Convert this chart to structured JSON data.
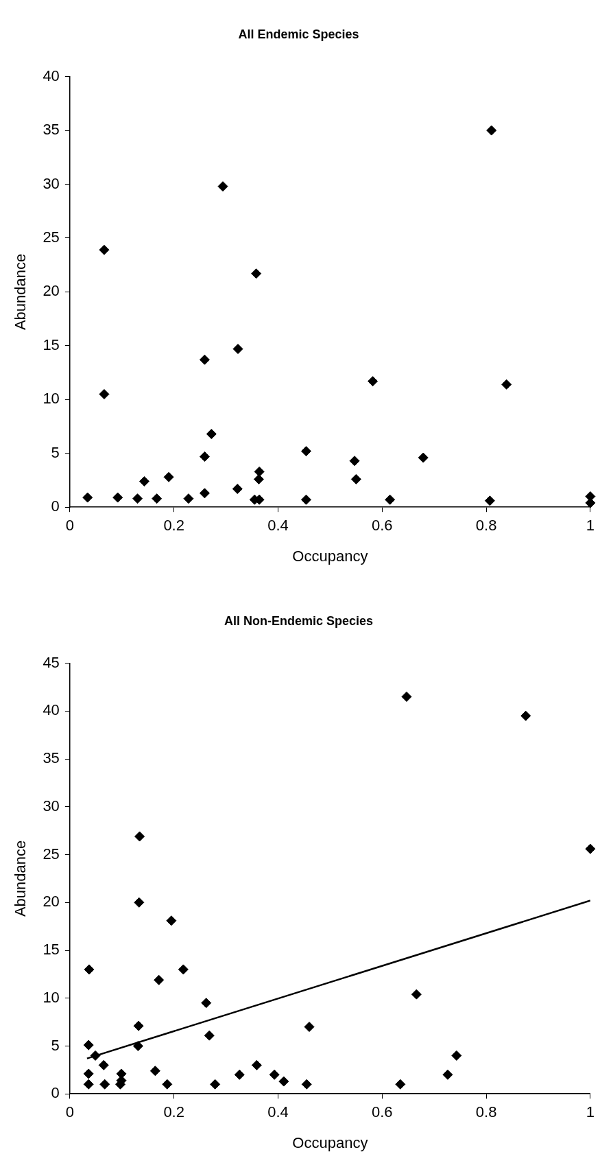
{
  "chart_data": [
    {
      "type": "scatter",
      "title": "All Endemic Species",
      "xlabel": "Occupancy",
      "ylabel": "Abundance",
      "xlim": [
        0,
        1
      ],
      "ylim": [
        0,
        40
      ],
      "xticks": [
        0,
        0.2,
        0.4,
        0.6,
        0.8,
        1
      ],
      "yticks": [
        0,
        5,
        10,
        15,
        20,
        25,
        30,
        35,
        40
      ],
      "marker": "diamond",
      "series": [
        {
          "color": "#000000",
          "x": [
            0.034,
            0.066,
            0.066,
            0.092,
            0.13,
            0.143,
            0.167,
            0.19,
            0.228,
            0.259,
            0.259,
            0.259,
            0.272,
            0.294,
            0.323,
            0.322,
            0.358,
            0.355,
            0.364,
            0.363,
            0.364,
            0.454,
            0.454,
            0.547,
            0.55,
            0.582,
            0.615,
            0.679,
            0.81,
            0.807,
            0.839,
            1,
            1
          ],
          "values": [
            0.9,
            23.9,
            10.5,
            0.9,
            0.8,
            2.4,
            0.8,
            2.8,
            0.8,
            13.7,
            4.7,
            1.3,
            6.8,
            29.8,
            14.7,
            1.7,
            21.7,
            0.7,
            3.3,
            2.6,
            0.7,
            5.2,
            0.7,
            4.3,
            2.6,
            11.7,
            0.7,
            4.6,
            35,
            0.6,
            11.4,
            1,
            0.4
          ]
        }
      ]
    },
    {
      "type": "scatter",
      "title": "All Non-Endemic Species",
      "xlabel": "Occupancy",
      "ylabel": "Abundance",
      "xlim": [
        0,
        1
      ],
      "ylim": [
        0,
        45
      ],
      "xticks": [
        0,
        0.2,
        0.4,
        0.6,
        0.8,
        1
      ],
      "yticks": [
        0,
        5,
        10,
        15,
        20,
        25,
        30,
        35,
        40,
        45
      ],
      "marker": "diamond",
      "series": [
        {
          "color": "#000000",
          "x": [
            0.037,
            0.036,
            0.036,
            0.036,
            0.049,
            0.065,
            0.067,
            0.099,
            0.099,
            0.097,
            0.134,
            0.133,
            0.132,
            0.131,
            0.164,
            0.171,
            0.187,
            0.195,
            0.218,
            0.262,
            0.268,
            0.279,
            0.326,
            0.359,
            0.393,
            0.411,
            0.46,
            0.455,
            0.635,
            0.647,
            0.666,
            0.726,
            0.743,
            0.876,
            1
          ],
          "values": [
            13,
            5.1,
            2.1,
            1,
            4,
            3,
            1,
            2.1,
            1.4,
            1,
            26.9,
            20,
            7.1,
            5,
            2.4,
            11.9,
            1,
            18.1,
            13,
            9.5,
            6.1,
            1,
            2,
            3,
            2,
            1.3,
            7,
            1,
            1,
            41.5,
            10.4,
            2,
            4,
            39.5,
            25.6
          ]
        },
        {
          "type": "line",
          "marker": "none",
          "color": "#000000",
          "x": [
            0.033,
            1
          ],
          "values": [
            3.7,
            20.2
          ]
        }
      ]
    }
  ]
}
